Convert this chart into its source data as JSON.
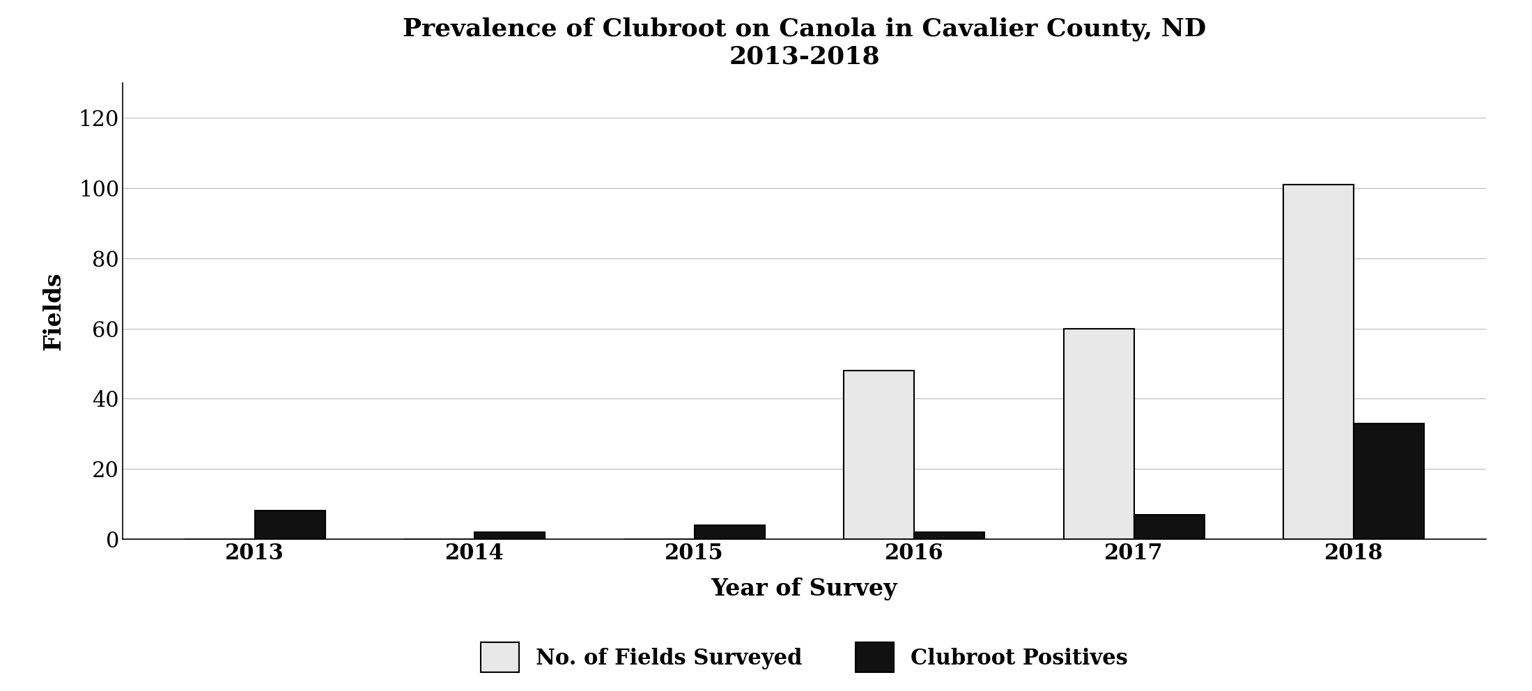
{
  "title_line1": "Prevalence of Clubroot on Canola in Cavalier County, ND",
  "title_line2": "2013-2018",
  "xlabel": "Year of Survey",
  "ylabel": "Fields",
  "years": [
    "2013",
    "2014",
    "2015",
    "2016",
    "2017",
    "2018"
  ],
  "fields_surveyed": [
    0,
    0,
    0,
    48,
    60,
    101
  ],
  "clubroot_positives": [
    8,
    2,
    4,
    2,
    7,
    33
  ],
  "bar_color_surveyed": "#e8e8e8",
  "bar_color_positives": "#111111",
  "bar_edge_color": "#000000",
  "bar_width": 0.32,
  "ylim": [
    0,
    130
  ],
  "yticks": [
    0,
    20,
    40,
    60,
    80,
    100,
    120
  ],
  "legend_surveyed": "No. of Fields Surveyed",
  "legend_positives": "Clubroot Positives",
  "title_fontsize": 26,
  "axis_label_fontsize": 24,
  "tick_fontsize": 22,
  "legend_fontsize": 22,
  "background_color": "#ffffff",
  "grid_color": "#bbbbbb",
  "figure_width": 21.99,
  "figure_height": 9.92,
  "dpi": 100
}
